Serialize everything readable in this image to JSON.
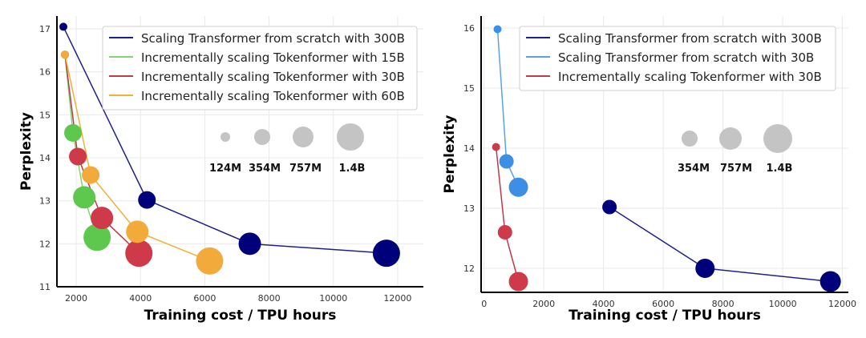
{
  "chart_data": [
    {
      "type": "scatter",
      "xlabel": "Training cost / TPU hours",
      "ylabel": "Perplexity",
      "xlim": [
        1400,
        12800
      ],
      "ylim": [
        11,
        17.3
      ],
      "xticks": [
        2000,
        4000,
        6000,
        8000,
        10000,
        12000
      ],
      "yticks": [
        11,
        12,
        13,
        14,
        15,
        16,
        17
      ],
      "grid": true,
      "legend_position": "top-right",
      "size_legend": {
        "labels": [
          "124M",
          "354M",
          "757M",
          "1.4B"
        ],
        "marker_color": "#c4c4c4"
      },
      "series": [
        {
          "name": "Scaling Transformer from scratch with 300B",
          "color": "#1f1f8c",
          "marker_color": "#00007a",
          "points": [
            {
              "x": 1600,
              "y": 17.05,
              "size": "124M"
            },
            {
              "x": 4200,
              "y": 13.02,
              "size": "354M"
            },
            {
              "x": 7400,
              "y": 12.0,
              "size": "757M"
            },
            {
              "x": 11650,
              "y": 11.78,
              "size": "1.4B"
            }
          ]
        },
        {
          "name": "Incrementally scaling Tokenformer with 15B",
          "color": "#7ed66f",
          "marker_color": "#5ec84e",
          "points": [
            {
              "x": 1650,
              "y": 16.4,
              "size": "124M"
            },
            {
              "x": 1900,
              "y": 14.58,
              "size": "354M"
            },
            {
              "x": 2250,
              "y": 13.08,
              "size": "757M"
            },
            {
              "x": 2650,
              "y": 12.15,
              "size": "1.4B"
            }
          ]
        },
        {
          "name": "Incrementally scaling Tokenformer with 30B",
          "color": "#c0384b",
          "marker_color": "#cf3a4a",
          "points": [
            {
              "x": 1650,
              "y": 16.4,
              "size": "124M"
            },
            {
              "x": 2050,
              "y": 14.03,
              "size": "354M"
            },
            {
              "x": 2800,
              "y": 12.6,
              "size": "757M"
            },
            {
              "x": 3950,
              "y": 11.78,
              "size": "1.4B"
            }
          ]
        },
        {
          "name": "Incrementally scaling Tokenformer with 60B",
          "color": "#f0b135",
          "marker_color": "#f2aa3a",
          "points": [
            {
              "x": 1650,
              "y": 16.4,
              "size": "124M"
            },
            {
              "x": 2450,
              "y": 13.6,
              "size": "354M"
            },
            {
              "x": 3900,
              "y": 12.28,
              "size": "757M"
            },
            {
              "x": 6150,
              "y": 11.6,
              "size": "1.4B"
            }
          ]
        }
      ]
    },
    {
      "type": "scatter",
      "xlabel": "Training cost / TPU hours",
      "ylabel": "Perplexity",
      "xlim": [
        -100,
        12200
      ],
      "ylim": [
        11.6,
        16.2
      ],
      "xticks": [
        0,
        2000,
        4000,
        6000,
        8000,
        10000,
        12000
      ],
      "yticks": [
        12,
        13,
        14,
        15,
        16
      ],
      "grid": true,
      "legend_position": "top-right",
      "size_legend": {
        "labels": [
          "354M",
          "757M",
          "1.4B"
        ],
        "marker_color": "#c4c4c4"
      },
      "series": [
        {
          "name": "Scaling Transformer from scratch with 300B",
          "color": "#1f1f8c",
          "marker_color": "#00007a",
          "points": [
            {
              "x": 4200,
              "y": 13.02,
              "size": "354M"
            },
            {
              "x": 7400,
              "y": 12.0,
              "size": "757M"
            },
            {
              "x": 11600,
              "y": 11.78,
              "size": "1.4B"
            }
          ]
        },
        {
          "name": "Scaling Transformer from scratch with 30B",
          "color": "#5aa2e6",
          "marker_color": "#3d8fe6",
          "points": [
            {
              "x": 450,
              "y": 15.98,
              "size": "124M"
            },
            {
              "x": 750,
              "y": 13.78,
              "size": "354M"
            },
            {
              "x": 1150,
              "y": 13.35,
              "size": "757M"
            }
          ]
        },
        {
          "name": "Incrementally scaling Tokenformer with 30B",
          "color": "#c0384b",
          "marker_color": "#cf3a4a",
          "points": [
            {
              "x": 400,
              "y": 14.02,
              "size": "124M"
            },
            {
              "x": 700,
              "y": 12.6,
              "size": "354M"
            },
            {
              "x": 1150,
              "y": 11.78,
              "size": "757M"
            }
          ]
        }
      ]
    }
  ]
}
